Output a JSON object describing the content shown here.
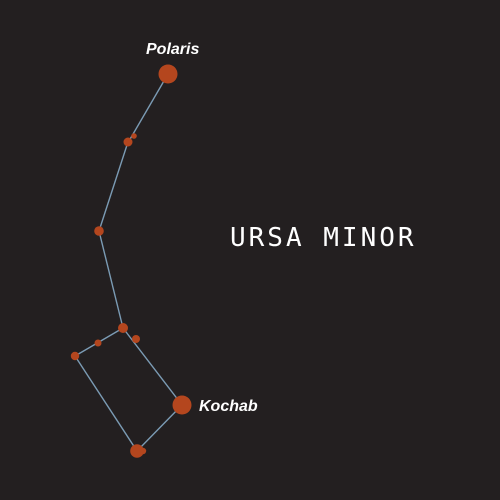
{
  "title": "URSA MINOR",
  "colors": {
    "background": "#231f20",
    "line": "#7b9bb4",
    "star": "#b4461e",
    "text": "#ffffff"
  },
  "labels": {
    "polaris": "Polaris",
    "kochab": "Kochab"
  }
}
